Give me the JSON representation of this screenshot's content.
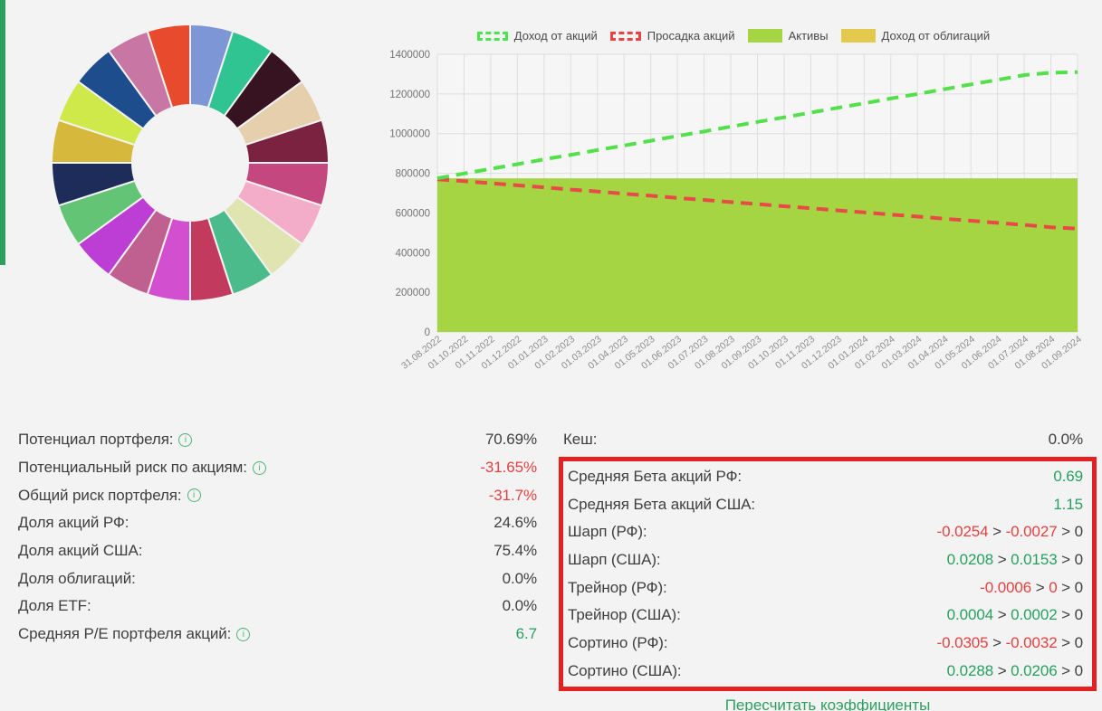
{
  "page": {
    "background": "#f3f3f3",
    "accent_bar_color": "#2d9f5e",
    "recalc_link": "Пересчитать коэффициенты"
  },
  "colors": {
    "text_dark": "#3f3f3f",
    "text_red": "#e54040",
    "text_green": "#27a05f",
    "highlight_box_border": "#e42020",
    "info_icon_green": "#4cb573",
    "grid_line": "#dedede",
    "plot_background": "#f6f6f6",
    "axis_text": "#8c8c8c"
  },
  "legend": {
    "items": [
      {
        "label": "Доход от акций",
        "swatch": "dashed",
        "color": "#4ce44c"
      },
      {
        "label": "Просадка акций",
        "swatch": "dashed",
        "color": "#e84444"
      },
      {
        "label": "Активы",
        "swatch": "solid",
        "color": "#a6d543"
      },
      {
        "label": "Доход от облигаций",
        "swatch": "solid",
        "color": "#e3c94e"
      }
    ]
  },
  "chart_data": [
    {
      "type": "pie",
      "style": "donut",
      "title": "",
      "labels_visible": false,
      "segments": [
        {
          "color": "#7d96d6",
          "fraction": 0.05
        },
        {
          "color": "#2fc492",
          "fraction": 0.05
        },
        {
          "color": "#371322",
          "fraction": 0.05
        },
        {
          "color": "#e6cfad",
          "fraction": 0.05
        },
        {
          "color": "#7c2241",
          "fraction": 0.05
        },
        {
          "color": "#c5477f",
          "fraction": 0.05
        },
        {
          "color": "#f3adc8",
          "fraction": 0.05
        },
        {
          "color": "#dfe4b0",
          "fraction": 0.05
        },
        {
          "color": "#4bbb8b",
          "fraction": 0.05
        },
        {
          "color": "#c23a5e",
          "fraction": 0.05
        },
        {
          "color": "#d24fd0",
          "fraction": 0.05
        },
        {
          "color": "#bf6090",
          "fraction": 0.05
        },
        {
          "color": "#bc3ed4",
          "fraction": 0.05
        },
        {
          "color": "#63c475",
          "fraction": 0.05
        },
        {
          "color": "#1d2c59",
          "fraction": 0.05
        },
        {
          "color": "#d6b93c",
          "fraction": 0.05
        },
        {
          "color": "#cfe84a",
          "fraction": 0.05
        },
        {
          "color": "#1e4d8e",
          "fraction": 0.05
        },
        {
          "color": "#c876a4",
          "fraction": 0.05
        },
        {
          "color": "#e74a2c",
          "fraction": 0.05
        }
      ]
    },
    {
      "type": "area",
      "title": "",
      "grid": true,
      "legend_position": "top",
      "ylim": [
        0,
        1400000
      ],
      "ytick_step": 200000,
      "x": [
        "31.08.2022",
        "01.10.2022",
        "01.11.2022",
        "01.12.2022",
        "01.01.2023",
        "01.02.2023",
        "01.03.2023",
        "01.04.2023",
        "01.05.2023",
        "01.06.2023",
        "01.07.2023",
        "01.08.2023",
        "01.09.2023",
        "01.10.2023",
        "01.11.2023",
        "01.12.2023",
        "01.01.2024",
        "01.02.2024",
        "01.03.2024",
        "01.04.2024",
        "01.05.2024",
        "01.06.2024",
        "01.07.2024",
        "01.08.2024",
        "01.09.2024"
      ],
      "series": [
        {
          "name": "Доход от акций",
          "style": "dashed-line",
          "color": "#53e04a",
          "values": [
            775000,
            799000,
            822000,
            846000,
            870000,
            893000,
            917000,
            940000,
            964000,
            988000,
            1011000,
            1035000,
            1059000,
            1082000,
            1106000,
            1130000,
            1153000,
            1177000,
            1200000,
            1224000,
            1248000,
            1271000,
            1295000,
            1307000,
            1310000
          ]
        },
        {
          "name": "Просадка акций",
          "style": "dashed-line",
          "color": "#e84a47",
          "values": [
            770000,
            760000,
            750000,
            739000,
            729000,
            718000,
            708000,
            697000,
            687000,
            676000,
            666000,
            655000,
            645000,
            634000,
            624000,
            613000,
            603000,
            592000,
            582000,
            571000,
            561000,
            550000,
            540000,
            528000,
            521000
          ]
        },
        {
          "name": "Активы",
          "style": "area",
          "color": "#a6d543",
          "values": [
            775000,
            775000,
            775000,
            775000,
            775000,
            775000,
            775000,
            775000,
            775000,
            775000,
            775000,
            775000,
            775000,
            775000,
            775000,
            775000,
            775000,
            775000,
            775000,
            775000,
            775000,
            775000,
            775000,
            775000,
            775000
          ]
        },
        {
          "name": "Доход от облигаций",
          "style": "area",
          "color": "#e3c94e",
          "visible": false,
          "values": []
        }
      ]
    }
  ],
  "stats_left": {
    "rows": [
      {
        "label": "Потенциал портфеля:",
        "info": true,
        "parts": [
          {
            "t": "70.69%",
            "c": "dark"
          }
        ]
      },
      {
        "label": "Потенциальный риск по акциям:",
        "info": true,
        "parts": [
          {
            "t": "-31.65%",
            "c": "red"
          }
        ]
      },
      {
        "label": "Общий риск портфеля:",
        "info": true,
        "parts": [
          {
            "t": "-31.7%",
            "c": "red"
          }
        ]
      },
      {
        "label": "Доля акций РФ:",
        "info": false,
        "parts": [
          {
            "t": "24.6%",
            "c": "dark"
          }
        ]
      },
      {
        "label": "Доля акций США:",
        "info": false,
        "parts": [
          {
            "t": "75.4%",
            "c": "dark"
          }
        ]
      },
      {
        "label": "Доля облигаций:",
        "info": false,
        "parts": [
          {
            "t": "0.0%",
            "c": "dark"
          }
        ]
      },
      {
        "label": "Доля ETF:",
        "info": false,
        "parts": [
          {
            "t": "0.0%",
            "c": "dark"
          }
        ]
      },
      {
        "label": "Средняя P/E портфеля акций:",
        "info": true,
        "parts": [
          {
            "t": "6.7",
            "c": "green"
          }
        ]
      }
    ]
  },
  "stats_right": {
    "cash_row": {
      "label": "Кеш:",
      "info": false,
      "parts": [
        {
          "t": "0.0%",
          "c": "dark"
        }
      ]
    },
    "boxed_rows": [
      {
        "label": "Средняя Бета акций РФ:",
        "info": false,
        "parts": [
          {
            "t": "0.69",
            "c": "green"
          }
        ]
      },
      {
        "label": "Средняя Бета акций США:",
        "info": false,
        "parts": [
          {
            "t": "1.15",
            "c": "green"
          }
        ]
      },
      {
        "label": "Шарп (РФ):",
        "info": false,
        "parts": [
          {
            "t": "-0.0254",
            "c": "red"
          },
          {
            "t": " > ",
            "c": "dark"
          },
          {
            "t": "-0.0027",
            "c": "red"
          },
          {
            "t": " > 0",
            "c": "dark"
          }
        ]
      },
      {
        "label": "Шарп (США):",
        "info": false,
        "parts": [
          {
            "t": "0.0208",
            "c": "green"
          },
          {
            "t": " > ",
            "c": "dark"
          },
          {
            "t": "0.0153",
            "c": "green"
          },
          {
            "t": " > 0",
            "c": "dark"
          }
        ]
      },
      {
        "label": "Трейнор (РФ):",
        "info": false,
        "parts": [
          {
            "t": "-0.0006",
            "c": "red"
          },
          {
            "t": " > ",
            "c": "dark"
          },
          {
            "t": "0",
            "c": "red"
          },
          {
            "t": " > 0",
            "c": "dark"
          }
        ]
      },
      {
        "label": "Трейнор (США):",
        "info": false,
        "parts": [
          {
            "t": "0.0004",
            "c": "green"
          },
          {
            "t": " > ",
            "c": "dark"
          },
          {
            "t": "0.0002",
            "c": "green"
          },
          {
            "t": " > 0",
            "c": "dark"
          }
        ]
      },
      {
        "label": "Сортино (РФ):",
        "info": false,
        "parts": [
          {
            "t": "-0.0305",
            "c": "red"
          },
          {
            "t": " > ",
            "c": "dark"
          },
          {
            "t": "-0.0032",
            "c": "red"
          },
          {
            "t": " > 0",
            "c": "dark"
          }
        ]
      },
      {
        "label": "Сортино (США):",
        "info": false,
        "parts": [
          {
            "t": "0.0288",
            "c": "green"
          },
          {
            "t": " > ",
            "c": "dark"
          },
          {
            "t": "0.0206",
            "c": "green"
          },
          {
            "t": " > 0",
            "c": "dark"
          }
        ]
      }
    ]
  }
}
